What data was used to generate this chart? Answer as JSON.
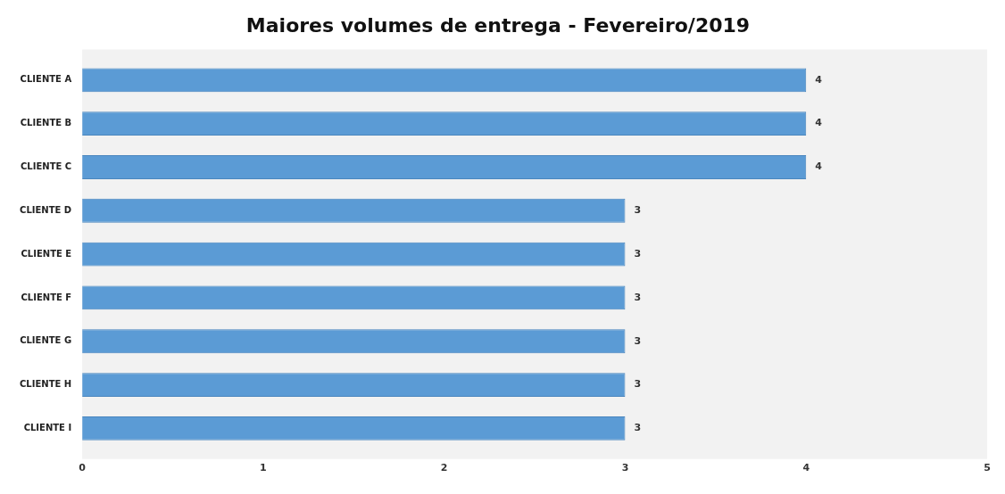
{
  "chart_data": {
    "type": "bar",
    "orientation": "horizontal",
    "title": "Maiores volumes de entrega - Fevereiro/2019",
    "categories": [
      "CLIENTE A",
      "CLIENTE B",
      "CLIENTE C",
      "CLIENTE D",
      "CLIENTE E",
      "CLIENTE F",
      "CLIENTE G",
      "CLIENTE H",
      "CLIENTE I"
    ],
    "values": [
      4,
      4,
      4,
      3,
      3,
      3,
      3,
      3,
      3
    ],
    "color": "#5b9bd5",
    "xlim": [
      0,
      5
    ],
    "xticks": [
      0,
      1,
      2,
      3,
      4,
      5
    ],
    "grid": false,
    "legend": false,
    "data_labels": true
  }
}
